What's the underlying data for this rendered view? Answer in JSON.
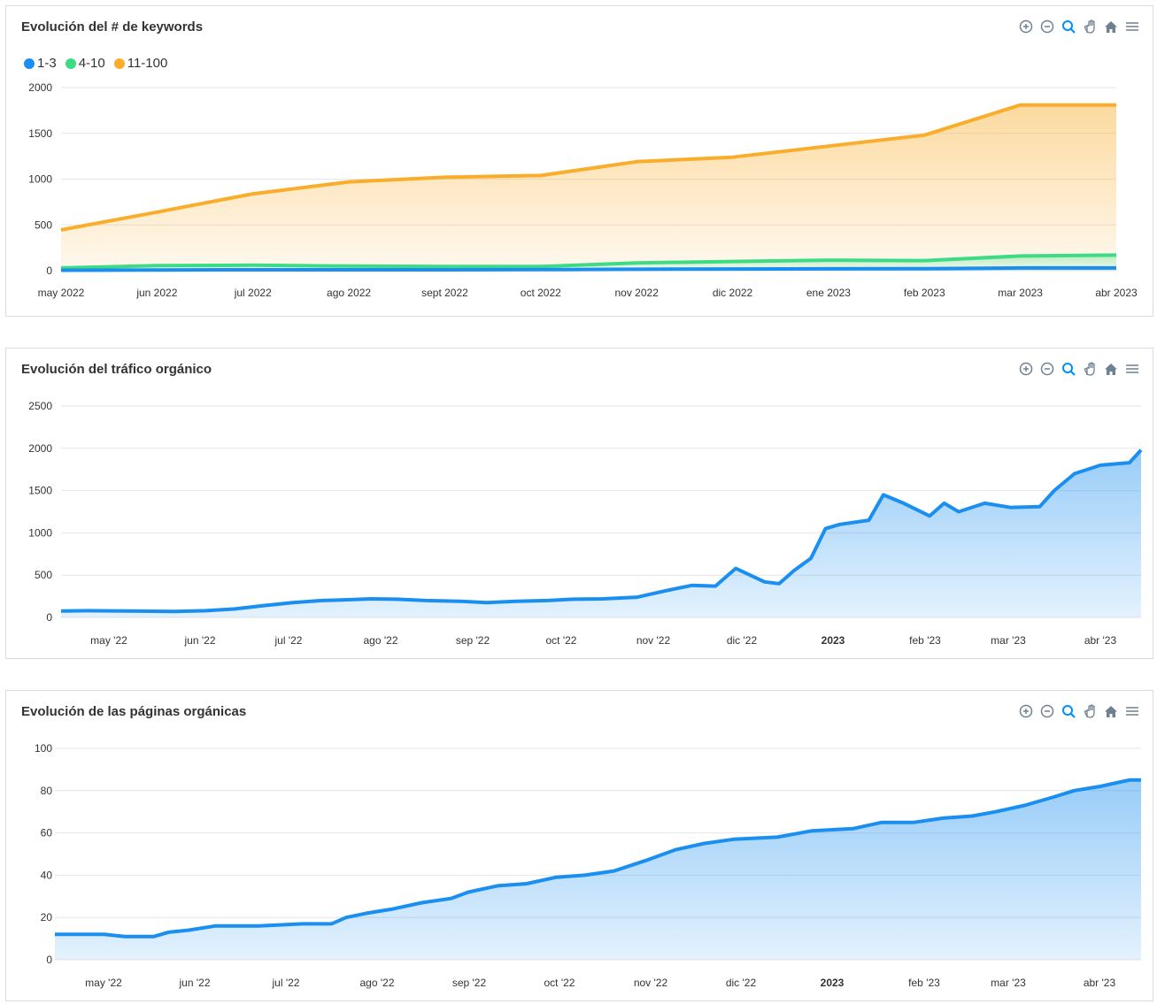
{
  "toolbar_icons": [
    "zoom-in-icon",
    "zoom-out-icon",
    "zoom-selection-icon",
    "pan-icon",
    "reset-home-icon",
    "menu-icon"
  ],
  "colors": {
    "blue": "#1a8ff0",
    "green": "#3ddc84",
    "orange": "#f9ad2b",
    "grid": "#e6e6e6",
    "tool_gray": "#6e8192",
    "tool_active": "#008ffb"
  },
  "chart1": {
    "title": "Evolución del # de keywords",
    "chart_data": {
      "type": "area",
      "title": "Evolución del # de keywords",
      "categories": [
        "may 2022",
        "jun 2022",
        "jul 2022",
        "ago 2022",
        "sept 2022",
        "oct 2022",
        "nov 2022",
        "dic 2022",
        "ene 2023",
        "feb 2023",
        "mar 2023",
        "abr 2023"
      ],
      "series": [
        {
          "name": "1-3",
          "color": "#1a8ff0",
          "values": [
            5,
            8,
            10,
            10,
            10,
            12,
            15,
            18,
            20,
            22,
            30,
            30
          ]
        },
        {
          "name": "4-10",
          "color": "#3ddc84",
          "values": [
            30,
            55,
            60,
            50,
            45,
            45,
            85,
            100,
            115,
            110,
            160,
            170
          ]
        },
        {
          "name": "11-100",
          "color": "#f9ad2b",
          "values": [
            445,
            640,
            840,
            970,
            1020,
            1040,
            1190,
            1240,
            1360,
            1480,
            1810,
            1810
          ]
        }
      ],
      "yticks": [
        "0",
        "500",
        "1000",
        "1500",
        "2000"
      ],
      "ylim": [
        0,
        2000
      ],
      "legend": "top-left",
      "grid": true
    }
  },
  "chart2": {
    "title": "Evolución del tráfico orgánico",
    "chart_data": {
      "type": "area",
      "title": "Evolución del tráfico orgánico",
      "xticks": [
        "may '22",
        "jun '22",
        "jul '22",
        "ago '22",
        "sep '22",
        "oct '22",
        "nov '22",
        "dic '22",
        "2023",
        "feb '23",
        "mar '23",
        "abr '23"
      ],
      "xticks_bold": [
        "2023"
      ],
      "yticks": [
        "0",
        "500",
        "1000",
        "1500",
        "2000",
        "2500"
      ],
      "ylim": [
        0,
        2500
      ],
      "grid": true,
      "series": [
        {
          "color": "#1a8ff0",
          "points": [
            [
              "2022-04-16",
              75
            ],
            [
              "2022-04-25",
              80
            ],
            [
              "2022-05-10",
              75
            ],
            [
              "2022-05-25",
              70
            ],
            [
              "2022-06-05",
              80
            ],
            [
              "2022-06-15",
              100
            ],
            [
              "2022-06-25",
              140
            ],
            [
              "2022-07-05",
              175
            ],
            [
              "2022-07-15",
              200
            ],
            [
              "2022-07-25",
              210
            ],
            [
              "2022-08-01",
              220
            ],
            [
              "2022-08-10",
              215
            ],
            [
              "2022-08-20",
              200
            ],
            [
              "2022-09-01",
              190
            ],
            [
              "2022-09-10",
              175
            ],
            [
              "2022-09-20",
              190
            ],
            [
              "2022-10-01",
              200
            ],
            [
              "2022-10-10",
              215
            ],
            [
              "2022-10-20",
              220
            ],
            [
              "2022-11-01",
              240
            ],
            [
              "2022-11-10",
              310
            ],
            [
              "2022-11-15",
              345
            ],
            [
              "2022-11-20",
              380
            ],
            [
              "2022-11-28",
              370
            ],
            [
              "2022-12-01",
              460
            ],
            [
              "2022-12-05",
              580
            ],
            [
              "2022-12-10",
              500
            ],
            [
              "2022-12-15",
              420
            ],
            [
              "2022-12-20",
              400
            ],
            [
              "2022-12-25",
              550
            ],
            [
              "2022-12-31",
              700
            ],
            [
              "2023-01-05",
              1050
            ],
            [
              "2023-01-10",
              1100
            ],
            [
              "2023-01-20",
              1150
            ],
            [
              "2023-01-25",
              1450
            ],
            [
              "2023-02-01",
              1350
            ],
            [
              "2023-02-10",
              1200
            ],
            [
              "2023-02-15",
              1350
            ],
            [
              "2023-02-20",
              1250
            ],
            [
              "2023-03-01",
              1350
            ],
            [
              "2023-03-10",
              1300
            ],
            [
              "2023-03-20",
              1310
            ],
            [
              "2023-03-25",
              1500
            ],
            [
              "2023-04-01",
              1700
            ],
            [
              "2023-04-10",
              1800
            ],
            [
              "2023-04-20",
              1830
            ],
            [
              "2023-04-24",
              1980
            ]
          ]
        }
      ]
    }
  },
  "chart3": {
    "title": "Evolución de las páginas orgánicas",
    "chart_data": {
      "type": "area",
      "title": "Evolución de las páginas orgánicas",
      "xticks": [
        "may '22",
        "jun '22",
        "jul '22",
        "ago '22",
        "sep '22",
        "oct '22",
        "nov '22",
        "dic '22",
        "2023",
        "feb '23",
        "mar '23",
        "abr '23"
      ],
      "xticks_bold": [
        "2023"
      ],
      "yticks": [
        "0",
        "20",
        "40",
        "60",
        "80",
        "100"
      ],
      "ylim": [
        0,
        100
      ],
      "grid": true,
      "series": [
        {
          "color": "#1a8ff0",
          "points": [
            [
              "2022-04-16",
              12
            ],
            [
              "2022-05-03",
              12
            ],
            [
              "2022-05-10",
              11
            ],
            [
              "2022-05-20",
              11
            ],
            [
              "2022-05-25",
              13
            ],
            [
              "2022-06-01",
              14
            ],
            [
              "2022-06-10",
              16
            ],
            [
              "2022-06-25",
              16
            ],
            [
              "2022-07-10",
              17
            ],
            [
              "2022-07-20",
              17
            ],
            [
              "2022-07-25",
              20
            ],
            [
              "2022-08-01",
              22
            ],
            [
              "2022-08-10",
              24
            ],
            [
              "2022-08-20",
              27
            ],
            [
              "2022-08-30",
              29
            ],
            [
              "2022-09-05",
              32
            ],
            [
              "2022-09-15",
              35
            ],
            [
              "2022-09-25",
              36
            ],
            [
              "2022-10-05",
              39
            ],
            [
              "2022-10-15",
              40
            ],
            [
              "2022-10-25",
              42
            ],
            [
              "2022-11-05",
              47
            ],
            [
              "2022-11-15",
              52
            ],
            [
              "2022-11-25",
              55
            ],
            [
              "2022-12-05",
              57
            ],
            [
              "2022-12-20",
              58
            ],
            [
              "2023-01-01",
              61
            ],
            [
              "2023-01-15",
              62
            ],
            [
              "2023-01-25",
              65
            ],
            [
              "2023-02-05",
              65
            ],
            [
              "2023-02-15",
              67
            ],
            [
              "2023-02-25",
              68
            ],
            [
              "2023-03-05",
              70
            ],
            [
              "2023-03-15",
              73
            ],
            [
              "2023-03-25",
              77
            ],
            [
              "2023-04-01",
              80
            ],
            [
              "2023-04-10",
              82
            ],
            [
              "2023-04-20",
              85
            ],
            [
              "2023-04-24",
              85
            ]
          ]
        }
      ]
    }
  }
}
